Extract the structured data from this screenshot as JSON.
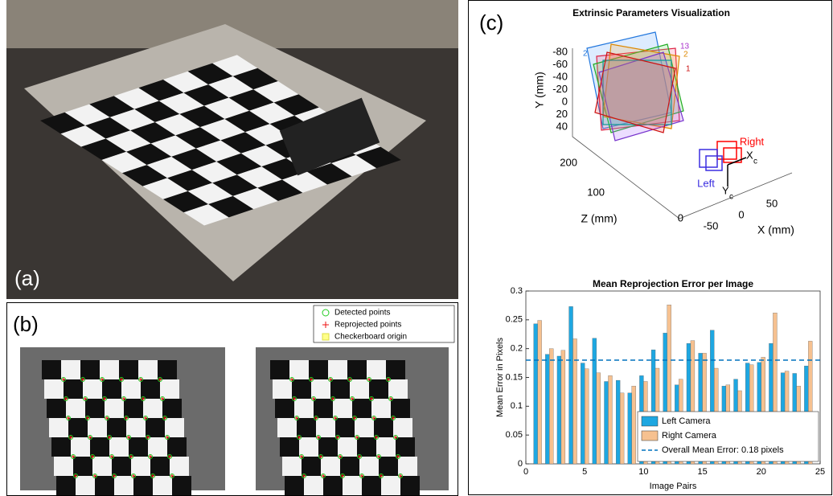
{
  "panel_a": {
    "label": "(a)"
  },
  "panel_b": {
    "label": "(b)",
    "legend": [
      "Detected points",
      "Reprojected points",
      "Checkerboard origin"
    ]
  },
  "panel_c": {
    "label": "(c)"
  },
  "chart_data": [
    {
      "type": "extrinsics",
      "title": "Extrinsic Parameters Visualization",
      "y_label": "Y (mm)",
      "z_label": "Z (mm)",
      "x_label": "X (mm)",
      "yticks": [
        -80,
        -60,
        -40,
        -20,
        0,
        20,
        40
      ],
      "zticks": [
        200,
        100,
        0
      ],
      "xticks": [
        -50,
        0,
        50
      ],
      "cameras": [
        {
          "name": "Right",
          "color": "#ff0000"
        },
        {
          "name": "Left",
          "color": "#3b2ee0"
        }
      ],
      "camera_axes": [
        "X",
        "Y"
      ],
      "axis_subscript": "c",
      "frame_labels": [
        "2",
        "13",
        "2",
        "1"
      ]
    },
    {
      "type": "bar",
      "title": "Mean Reprojection Error per Image",
      "x_label": "Image Pairs",
      "y_label": "Mean Error in Pixels",
      "x": [
        1,
        2,
        3,
        4,
        5,
        6,
        7,
        8,
        9,
        10,
        11,
        12,
        13,
        14,
        15,
        16,
        17,
        18,
        19,
        20,
        21,
        22,
        23,
        24
      ],
      "series": [
        {
          "name": "Left Camera",
          "color": "#1ea7e1",
          "values": [
            0.243,
            0.19,
            0.187,
            0.273,
            0.175,
            0.218,
            0.143,
            0.145,
            0.123,
            0.153,
            0.198,
            0.227,
            0.137,
            0.209,
            0.192,
            0.232,
            0.135,
            0.147,
            0.175,
            0.176,
            0.209,
            0.158,
            0.157,
            0.17
          ]
        },
        {
          "name": "Right Camera",
          "color": "#f6c190",
          "values": [
            0.249,
            0.2,
            0.197,
            0.217,
            0.165,
            0.158,
            0.153,
            0.123,
            0.135,
            0.143,
            0.166,
            0.276,
            0.147,
            0.214,
            0.192,
            0.166,
            0.137,
            0.127,
            0.172,
            0.185,
            0.262,
            0.161,
            0.135,
            0.213
          ]
        }
      ],
      "mean_line": {
        "name": "Overall Mean Error: 0.18 pixels",
        "value": 0.18,
        "color": "#0072bd"
      },
      "xlim": [
        0,
        25
      ],
      "xticks": [
        0,
        5,
        10,
        15,
        20,
        25
      ],
      "ylim": [
        0,
        0.3
      ],
      "yticks": [
        0,
        0.05,
        0.1,
        0.15,
        0.2,
        0.25,
        0.3
      ],
      "legend": "lower right"
    }
  ]
}
